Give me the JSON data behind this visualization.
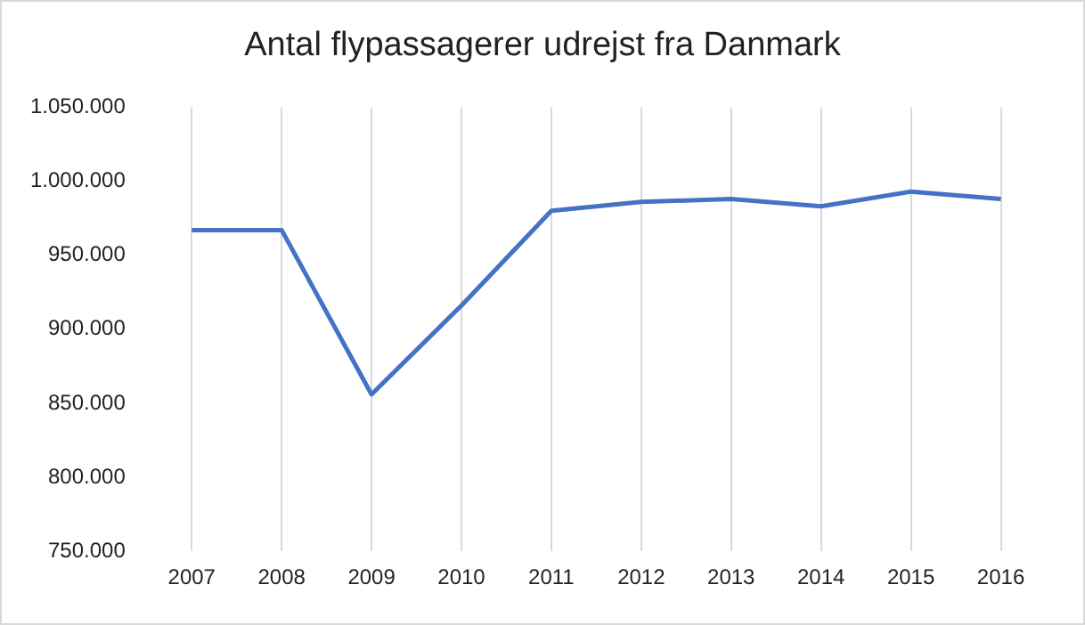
{
  "chart_data": {
    "type": "line",
    "title": "Antal flypassagerer udrejst fra Danmark",
    "categories": [
      "2007",
      "2008",
      "2009",
      "2010",
      "2011",
      "2012",
      "2013",
      "2014",
      "2015",
      "2016"
    ],
    "series": [
      {
        "color": "#4472c4",
        "values": [
          967000,
          967000,
          856000,
          916000,
          980000,
          986000,
          988000,
          983000,
          993000,
          988000
        ]
      }
    ],
    "ylim": [
      750000,
      1050000
    ],
    "yticks": [
      {
        "value": 750000,
        "label": "750.000"
      },
      {
        "value": 800000,
        "label": "800.000"
      },
      {
        "value": 850000,
        "label": "850.000"
      },
      {
        "value": 900000,
        "label": "900.000"
      },
      {
        "value": 950000,
        "label": "950.000"
      },
      {
        "value": 1000000,
        "label": "1.000.000"
      },
      {
        "value": 1050000,
        "label": "1.050.000"
      }
    ],
    "grid": "x",
    "legend": false,
    "marker": "none",
    "line_style": "solid"
  }
}
